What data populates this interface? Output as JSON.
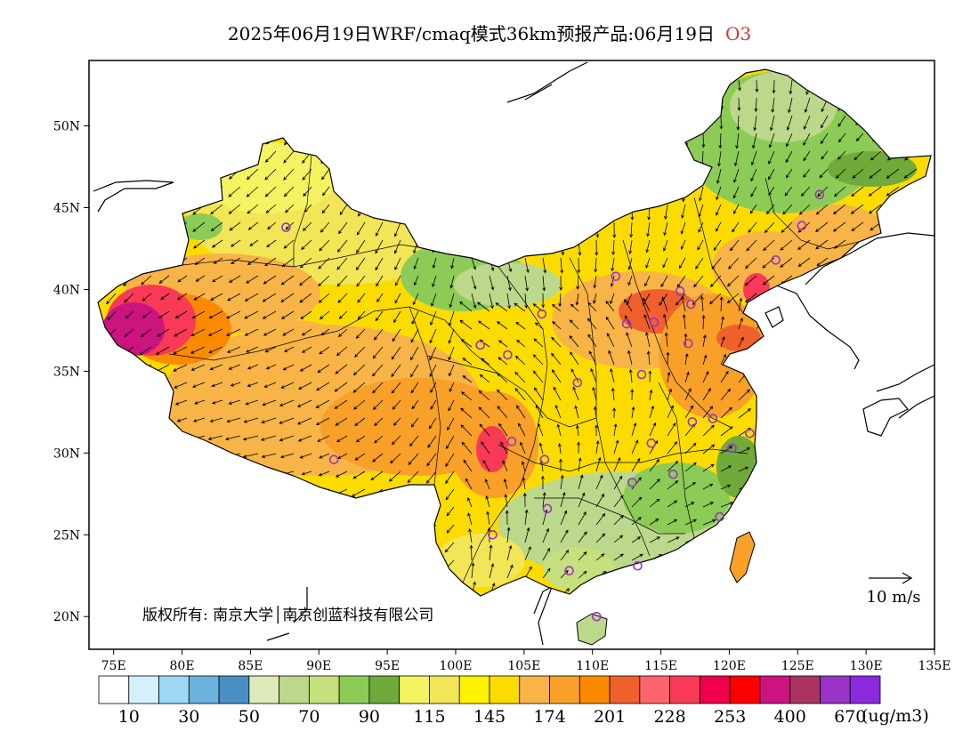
{
  "title": {
    "text": "2025年06月19日WRF/cmaq模式36km预报产品:06月19日",
    "species": "O3"
  },
  "copyright": "版权所有: 南京大学│南京创蓝科技有限公司",
  "wind_reference": "10 m/s",
  "axes": {
    "lon_ticks": [
      "75E",
      "80E",
      "85E",
      "90E",
      "95E",
      "100E",
      "105E",
      "110E",
      "115E",
      "120E",
      "125E",
      "130E",
      "135E"
    ],
    "lat_ticks": [
      "50N",
      "45N",
      "40N",
      "35N",
      "30N",
      "25N",
      "20N"
    ]
  },
  "colorbar": {
    "unit": "(ug/m3)",
    "labels": [
      "10",
      "30",
      "50",
      "70",
      "90",
      "115",
      "145",
      "174",
      "201",
      "228",
      "253",
      "400",
      "670"
    ],
    "colors": [
      "#ffffff",
      "#d4f0fc",
      "#9dd8f4",
      "#6cb2de",
      "#4a8fc4",
      "#dcebb8",
      "#bcd88a",
      "#c6e07e",
      "#8ccc56",
      "#70aa3a",
      "#f4f462",
      "#f2e656",
      "#fcf200",
      "#fcdc00",
      "#f8b446",
      "#f8a028",
      "#fc8a00",
      "#f0602c",
      "#fc646c",
      "#f83a56",
      "#f0004a",
      "#fc0000",
      "#cc1480",
      "#aa3462",
      "#9a32c8",
      "#8a2adc"
    ]
  },
  "monitoring_stations": [
    {
      "lon": 87.6,
      "lat": 43.8
    },
    {
      "lon": 91.1,
      "lat": 29.6
    },
    {
      "lon": 101.8,
      "lat": 36.6
    },
    {
      "lon": 103.8,
      "lat": 36.0
    },
    {
      "lon": 106.3,
      "lat": 38.5
    },
    {
      "lon": 111.7,
      "lat": 40.8
    },
    {
      "lon": 112.5,
      "lat": 37.9
    },
    {
      "lon": 114.5,
      "lat": 38.0
    },
    {
      "lon": 116.4,
      "lat": 39.9
    },
    {
      "lon": 117.2,
      "lat": 39.1
    },
    {
      "lon": 117.0,
      "lat": 36.7
    },
    {
      "lon": 113.6,
      "lat": 34.8
    },
    {
      "lon": 108.9,
      "lat": 34.3
    },
    {
      "lon": 104.1,
      "lat": 30.7
    },
    {
      "lon": 106.5,
      "lat": 29.6
    },
    {
      "lon": 114.3,
      "lat": 30.6
    },
    {
      "lon": 117.3,
      "lat": 31.9
    },
    {
      "lon": 118.8,
      "lat": 32.1
    },
    {
      "lon": 120.2,
      "lat": 30.3
    },
    {
      "lon": 121.5,
      "lat": 31.2
    },
    {
      "lon": 112.9,
      "lat": 28.2
    },
    {
      "lon": 115.9,
      "lat": 28.7
    },
    {
      "lon": 119.3,
      "lat": 26.1
    },
    {
      "lon": 106.7,
      "lat": 26.6
    },
    {
      "lon": 102.7,
      "lat": 25.0
    },
    {
      "lon": 108.3,
      "lat": 22.8
    },
    {
      "lon": 113.3,
      "lat": 23.1
    },
    {
      "lon": 110.3,
      "lat": 20.0
    },
    {
      "lon": 123.4,
      "lat": 41.8
    },
    {
      "lon": 125.3,
      "lat": 43.9
    },
    {
      "lon": 126.6,
      "lat": 45.8
    }
  ]
}
